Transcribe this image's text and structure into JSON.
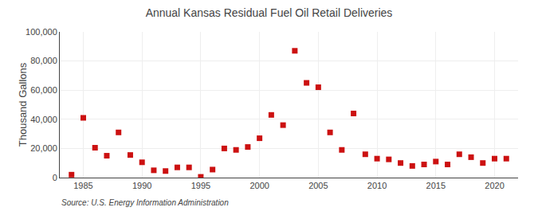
{
  "chart_data": {
    "type": "scatter",
    "title": "Annual Kansas Residual Fuel Oil Retail Deliveries",
    "ylabel": "Thousand Gallons",
    "annotations": [
      "Source: U.S. Energy Information Administration"
    ],
    "x": [
      1984,
      1985,
      1986,
      1987,
      1988,
      1989,
      1990,
      1991,
      1992,
      1993,
      1994,
      1995,
      1996,
      1997,
      1998,
      1999,
      2000,
      2001,
      2002,
      2003,
      2004,
      2005,
      2006,
      2007,
      2008,
      2009,
      2010,
      2011,
      2012,
      2013,
      2014,
      2015,
      2016,
      2017,
      2018,
      2019,
      2020,
      2021
    ],
    "values": [
      2000,
      41000,
      20500,
      15000,
      31000,
      15500,
      10500,
      5000,
      4500,
      7000,
      7000,
      500,
      5500,
      20000,
      19000,
      21000,
      27000,
      43000,
      36000,
      87000,
      65000,
      62000,
      31000,
      19000,
      44000,
      16000,
      13000,
      12500,
      10000,
      8000,
      9000,
      11000,
      9000,
      16000,
      14000,
      10000,
      13000,
      13000
    ],
    "color": "#cc1111",
    "marker": "square",
    "xlim": [
      1983,
      2022
    ],
    "xticks": [
      1985,
      1990,
      1995,
      2000,
      2005,
      2010,
      2015,
      2020
    ],
    "ylim": [
      0,
      100000
    ],
    "yticks": [
      0,
      {
        "value": 20000,
        "label": "20,000"
      },
      {
        "value": 40000,
        "label": "40,000"
      },
      {
        "value": 60000,
        "label": "60,000"
      },
      {
        "value": 80000,
        "label": "80,000"
      },
      {
        "value": 100000,
        "label": "100,000"
      }
    ],
    "grid": true
  }
}
